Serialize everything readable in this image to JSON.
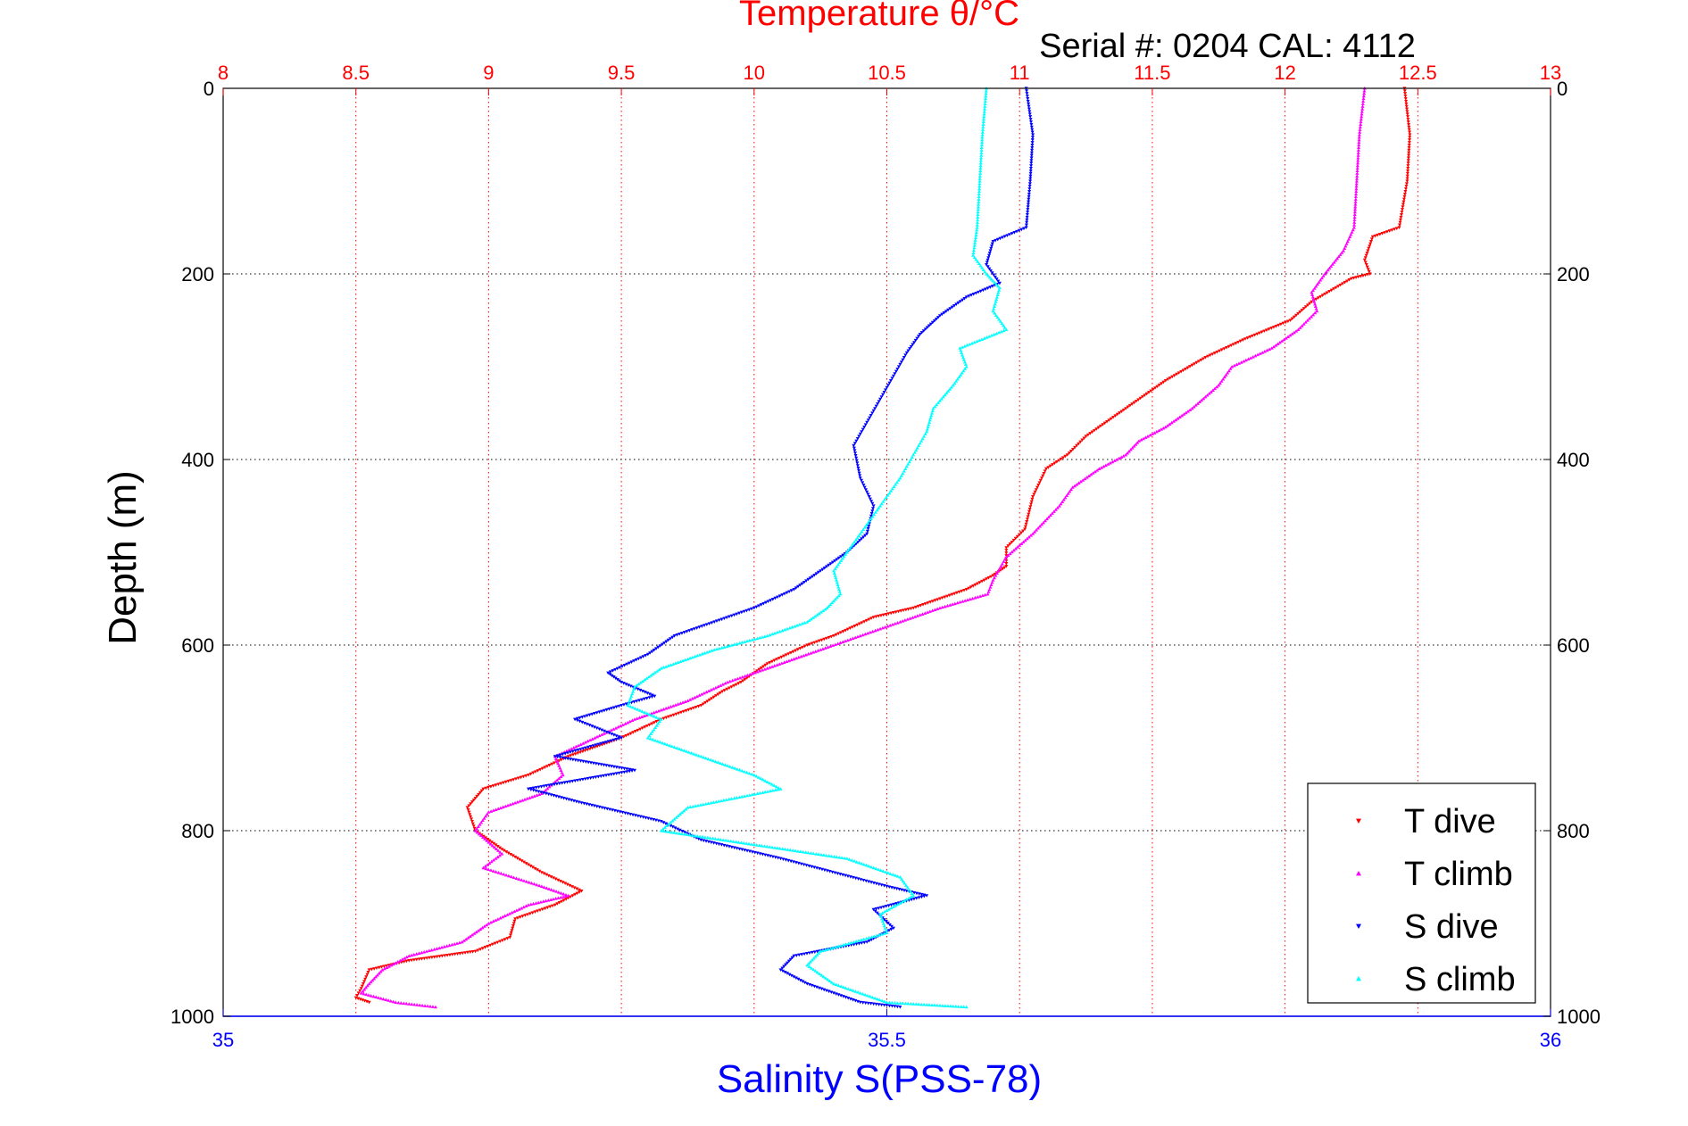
{
  "chart_data": {
    "type": "scatter",
    "title": "Temperature θ/°C",
    "subtitle": "Serial #: 0204  CAL: 4112",
    "ylabel": "Depth (m)",
    "xlabel_bottom": "Salinity S(PSS-78)",
    "ylim": [
      0,
      1000
    ],
    "y_reversed": true,
    "y_ticks": [
      "0",
      "200",
      "400",
      "600",
      "800",
      "1000"
    ],
    "y_tick_values": [
      0,
      200,
      400,
      600,
      800,
      1000
    ],
    "temperature_axis": {
      "lim": [
        8,
        13
      ],
      "tick_values": [
        8,
        8.5,
        9,
        9.5,
        10,
        10.5,
        11,
        11.5,
        12,
        12.5,
        13
      ],
      "tick_labels": [
        "8",
        "8.5",
        "9",
        "9.5",
        "10",
        "10.5",
        "11",
        "11.5",
        "12",
        "12.5",
        "13"
      ]
    },
    "salinity_axis": {
      "lim": [
        35,
        36
      ],
      "tick_values": [
        35,
        35.5,
        36
      ],
      "tick_labels": [
        "35",
        "35.5",
        "36"
      ]
    },
    "grid": true,
    "legend_position": "bottom-right",
    "colors": {
      "temperature_axis": "#ff0000",
      "salinity_axis": "#0000ff",
      "t_dive": "#ff0000",
      "t_climb": "#ff00ff",
      "s_dive": "#0000ff",
      "s_climb": "#00ffff"
    },
    "series": [
      {
        "name": "T dive",
        "axis": "temperature",
        "color": "#ff0000",
        "marker": "triangle-down",
        "points": [
          [
            12.45,
            0
          ],
          [
            12.47,
            50
          ],
          [
            12.46,
            100
          ],
          [
            12.43,
            150
          ],
          [
            12.33,
            160
          ],
          [
            12.3,
            185
          ],
          [
            12.32,
            200
          ],
          [
            12.25,
            205
          ],
          [
            12.1,
            230
          ],
          [
            12.02,
            250
          ],
          [
            11.85,
            270
          ],
          [
            11.7,
            290
          ],
          [
            11.55,
            315
          ],
          [
            11.4,
            345
          ],
          [
            11.25,
            375
          ],
          [
            11.18,
            395
          ],
          [
            11.1,
            410
          ],
          [
            11.05,
            440
          ],
          [
            11.02,
            475
          ],
          [
            10.95,
            495
          ],
          [
            10.95,
            515
          ],
          [
            10.9,
            525
          ],
          [
            10.8,
            540
          ],
          [
            10.6,
            560
          ],
          [
            10.45,
            570
          ],
          [
            10.3,
            590
          ],
          [
            10.2,
            600
          ],
          [
            10.05,
            620
          ],
          [
            9.95,
            640
          ],
          [
            9.88,
            650
          ],
          [
            9.8,
            665
          ],
          [
            9.65,
            680
          ],
          [
            9.5,
            700
          ],
          [
            9.3,
            720
          ],
          [
            9.15,
            740
          ],
          [
            8.98,
            755
          ],
          [
            8.92,
            775
          ],
          [
            8.95,
            800
          ],
          [
            9.05,
            820
          ],
          [
            9.2,
            845
          ],
          [
            9.35,
            865
          ],
          [
            9.25,
            880
          ],
          [
            9.1,
            895
          ],
          [
            9.08,
            915
          ],
          [
            8.95,
            930
          ],
          [
            8.7,
            940
          ],
          [
            8.55,
            950
          ],
          [
            8.52,
            970
          ],
          [
            8.5,
            980
          ],
          [
            8.55,
            985
          ]
        ]
      },
      {
        "name": "T climb",
        "axis": "temperature",
        "color": "#ff00ff",
        "marker": "triangle-up",
        "points": [
          [
            12.3,
            0
          ],
          [
            12.28,
            50
          ],
          [
            12.27,
            100
          ],
          [
            12.26,
            150
          ],
          [
            12.22,
            175
          ],
          [
            12.15,
            200
          ],
          [
            12.1,
            220
          ],
          [
            12.12,
            240
          ],
          [
            12.05,
            260
          ],
          [
            11.95,
            280
          ],
          [
            11.8,
            300
          ],
          [
            11.75,
            320
          ],
          [
            11.65,
            345
          ],
          [
            11.55,
            365
          ],
          [
            11.45,
            380
          ],
          [
            11.4,
            395
          ],
          [
            11.3,
            410
          ],
          [
            11.2,
            430
          ],
          [
            11.15,
            450
          ],
          [
            11.05,
            480
          ],
          [
            10.95,
            505
          ],
          [
            10.9,
            530
          ],
          [
            10.88,
            545
          ],
          [
            10.7,
            560
          ],
          [
            10.55,
            575
          ],
          [
            10.4,
            590
          ],
          [
            10.25,
            605
          ],
          [
            10.05,
            625
          ],
          [
            9.9,
            640
          ],
          [
            9.75,
            660
          ],
          [
            9.55,
            680
          ],
          [
            9.4,
            700
          ],
          [
            9.25,
            720
          ],
          [
            9.28,
            740
          ],
          [
            9.2,
            760
          ],
          [
            9.0,
            780
          ],
          [
            8.95,
            800
          ],
          [
            9.05,
            825
          ],
          [
            8.98,
            840
          ],
          [
            9.2,
            860
          ],
          [
            9.3,
            870
          ],
          [
            9.15,
            880
          ],
          [
            9.0,
            900
          ],
          [
            8.9,
            920
          ],
          [
            8.7,
            935
          ],
          [
            8.6,
            950
          ],
          [
            8.55,
            965
          ],
          [
            8.52,
            975
          ],
          [
            8.65,
            985
          ],
          [
            8.8,
            990
          ]
        ]
      },
      {
        "name": "S dive",
        "axis": "salinity",
        "color": "#0000ff",
        "marker": "triangle-down",
        "points": [
          [
            35.605,
            0
          ],
          [
            35.61,
            50
          ],
          [
            35.608,
            100
          ],
          [
            35.605,
            150
          ],
          [
            35.58,
            165
          ],
          [
            35.575,
            190
          ],
          [
            35.585,
            210
          ],
          [
            35.56,
            225
          ],
          [
            35.54,
            245
          ],
          [
            35.525,
            265
          ],
          [
            35.515,
            285
          ],
          [
            35.505,
            310
          ],
          [
            35.495,
            335
          ],
          [
            35.485,
            360
          ],
          [
            35.475,
            385
          ],
          [
            35.48,
            420
          ],
          [
            35.49,
            450
          ],
          [
            35.485,
            480
          ],
          [
            35.47,
            500
          ],
          [
            35.45,
            520
          ],
          [
            35.43,
            540
          ],
          [
            35.4,
            560
          ],
          [
            35.37,
            575
          ],
          [
            35.34,
            590
          ],
          [
            35.32,
            610
          ],
          [
            35.29,
            630
          ],
          [
            35.3,
            640
          ],
          [
            35.325,
            655
          ],
          [
            35.3,
            665
          ],
          [
            35.265,
            680
          ],
          [
            35.3,
            700
          ],
          [
            35.25,
            720
          ],
          [
            35.31,
            735
          ],
          [
            35.23,
            755
          ],
          [
            35.27,
            770
          ],
          [
            35.33,
            790
          ],
          [
            35.36,
            810
          ],
          [
            35.42,
            830
          ],
          [
            35.5,
            860
          ],
          [
            35.53,
            870
          ],
          [
            35.49,
            885
          ],
          [
            35.505,
            905
          ],
          [
            35.485,
            920
          ],
          [
            35.43,
            935
          ],
          [
            35.42,
            950
          ],
          [
            35.44,
            965
          ],
          [
            35.48,
            985
          ],
          [
            35.51,
            990
          ]
        ]
      },
      {
        "name": "S climb",
        "axis": "salinity",
        "color": "#00ffff",
        "marker": "triangle-up",
        "points": [
          [
            35.575,
            0
          ],
          [
            35.572,
            50
          ],
          [
            35.57,
            100
          ],
          [
            35.568,
            150
          ],
          [
            35.565,
            180
          ],
          [
            35.575,
            200
          ],
          [
            35.585,
            215
          ],
          [
            35.58,
            240
          ],
          [
            35.59,
            260
          ],
          [
            35.555,
            280
          ],
          [
            35.56,
            300
          ],
          [
            35.55,
            320
          ],
          [
            35.535,
            345
          ],
          [
            35.53,
            370
          ],
          [
            35.52,
            395
          ],
          [
            35.51,
            420
          ],
          [
            35.495,
            450
          ],
          [
            35.48,
            480
          ],
          [
            35.47,
            500
          ],
          [
            35.46,
            520
          ],
          [
            35.465,
            545
          ],
          [
            35.455,
            560
          ],
          [
            35.44,
            575
          ],
          [
            35.41,
            590
          ],
          [
            35.37,
            605
          ],
          [
            35.33,
            625
          ],
          [
            35.31,
            645
          ],
          [
            35.305,
            665
          ],
          [
            35.33,
            680
          ],
          [
            35.32,
            700
          ],
          [
            35.36,
            720
          ],
          [
            35.4,
            740
          ],
          [
            35.42,
            755
          ],
          [
            35.35,
            775
          ],
          [
            35.33,
            800
          ],
          [
            35.4,
            815
          ],
          [
            35.47,
            830
          ],
          [
            35.51,
            850
          ],
          [
            35.52,
            870
          ],
          [
            35.495,
            890
          ],
          [
            35.5,
            910
          ],
          [
            35.45,
            930
          ],
          [
            35.44,
            945
          ],
          [
            35.46,
            965
          ],
          [
            35.5,
            985
          ],
          [
            35.56,
            990
          ]
        ]
      }
    ]
  }
}
